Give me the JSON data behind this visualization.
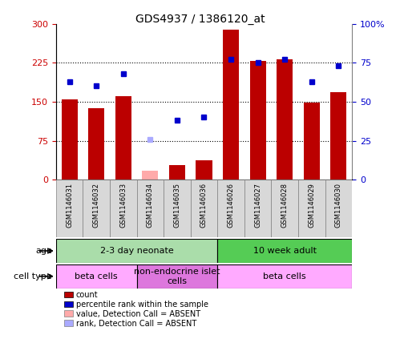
{
  "title": "GDS4937 / 1386120_at",
  "samples": [
    "GSM1146031",
    "GSM1146032",
    "GSM1146033",
    "GSM1146034",
    "GSM1146035",
    "GSM1146036",
    "GSM1146026",
    "GSM1146027",
    "GSM1146028",
    "GSM1146029",
    "GSM1146030"
  ],
  "count_values": [
    155,
    138,
    160,
    null,
    28,
    38,
    289,
    228,
    232,
    148,
    168
  ],
  "count_absent": [
    null,
    null,
    null,
    18,
    null,
    null,
    null,
    null,
    null,
    null,
    null
  ],
  "rank_values": [
    63,
    60,
    68,
    null,
    38,
    40,
    77,
    75,
    77,
    63,
    73
  ],
  "rank_absent": [
    null,
    null,
    null,
    26,
    null,
    null,
    null,
    null,
    null,
    null,
    null
  ],
  "left_ylim": [
    0,
    300
  ],
  "right_ylim": [
    0,
    100
  ],
  "left_yticks": [
    0,
    75,
    150,
    225,
    300
  ],
  "right_yticks": [
    0,
    25,
    50,
    75,
    100
  ],
  "left_yticklabels": [
    "0",
    "75",
    "150",
    "225",
    "300"
  ],
  "right_yticklabels": [
    "0",
    "25",
    "50",
    "75",
    "100%"
  ],
  "bar_color": "#bb0000",
  "bar_absent_color": "#ffaaaa",
  "rank_color": "#0000cc",
  "rank_absent_color": "#aaaaff",
  "age_groups": [
    {
      "label": "2-3 day neonate",
      "start": 0,
      "end": 6,
      "color": "#aaddaa"
    },
    {
      "label": "10 week adult",
      "start": 6,
      "end": 11,
      "color": "#55cc55"
    }
  ],
  "cell_groups": [
    {
      "label": "beta cells",
      "start": 0,
      "end": 3,
      "color": "#ffaaff"
    },
    {
      "label": "non-endocrine islet\ncells",
      "start": 3,
      "end": 6,
      "color": "#dd77dd"
    },
    {
      "label": "beta cells",
      "start": 6,
      "end": 11,
      "color": "#ffaaff"
    }
  ],
  "legend_items": [
    {
      "color": "#bb0000",
      "label": "count"
    },
    {
      "color": "#0000cc",
      "label": "percentile rank within the sample"
    },
    {
      "color": "#ffaaaa",
      "label": "value, Detection Call = ABSENT"
    },
    {
      "color": "#aaaaff",
      "label": "rank, Detection Call = ABSENT"
    }
  ],
  "age_label": "age",
  "celltype_label": "cell type"
}
